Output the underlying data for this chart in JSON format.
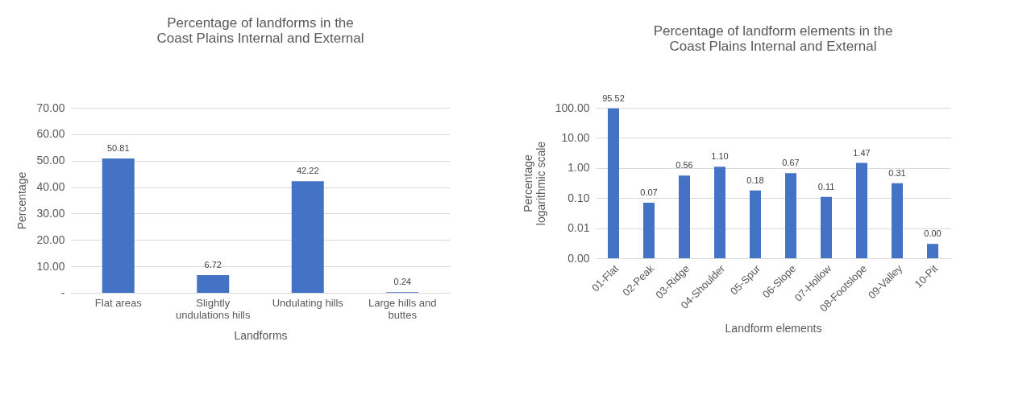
{
  "chart_data": [
    {
      "type": "bar",
      "title": "Percentage of landforms in the\nCoast Plains Internal and External",
      "xlabel": "Landforms",
      "ylabel": "Percentage",
      "categories": [
        "Flat areas",
        "Slightly undulations hills",
        "Undulating hills",
        "Large hills and buttes"
      ],
      "values": [
        50.81,
        6.72,
        42.22,
        0.24
      ],
      "color": "#4472c4",
      "ylim": [
        0,
        70
      ],
      "yticks": [
        {
          "value": 0,
          "label": "-"
        },
        {
          "value": 10,
          "label": "10.00"
        },
        {
          "value": 20,
          "label": "20.00"
        },
        {
          "value": 30,
          "label": "30.00"
        },
        {
          "value": 40,
          "label": "40.00"
        },
        {
          "value": 50,
          "label": "50.00"
        },
        {
          "value": 60,
          "label": "60.00"
        },
        {
          "value": 70,
          "label": "70.00"
        }
      ],
      "grid": "y",
      "data_labels": true
    },
    {
      "type": "bar",
      "title": "Percentage of landform elements in the\nCoast Plains Internal and External",
      "xlabel": "Landform elements",
      "ylabel": "Percentage\nlogarithmic scale",
      "categories": [
        "01-Flat",
        "02-Peak",
        "03-Ridge",
        "04-Shoulder",
        "05-Spur",
        "06-Slope",
        "07-Hollow",
        "08-Footslope",
        "09-Valley",
        "10-Pit"
      ],
      "values": [
        95.52,
        0.07,
        0.56,
        1.1,
        0.18,
        0.67,
        0.11,
        1.47,
        0.31,
        0.003
      ],
      "value_labels": [
        "95.52",
        "0.07",
        "0.56",
        "1.10",
        "0.18",
        "0.67",
        "0.11",
        "1.47",
        "0.31",
        "0.00"
      ],
      "color": "#4472c4",
      "log": "y",
      "ylim": [
        0.001,
        100
      ],
      "yticks": [
        {
          "value": 0.001,
          "label": "0.00"
        },
        {
          "value": 0.01,
          "label": "0.01"
        },
        {
          "value": 0.1,
          "label": "0.10"
        },
        {
          "value": 1,
          "label": "1.00"
        },
        {
          "value": 10,
          "label": "10.00"
        },
        {
          "value": 100,
          "label": "100.00"
        }
      ],
      "grid": "y"
    }
  ]
}
